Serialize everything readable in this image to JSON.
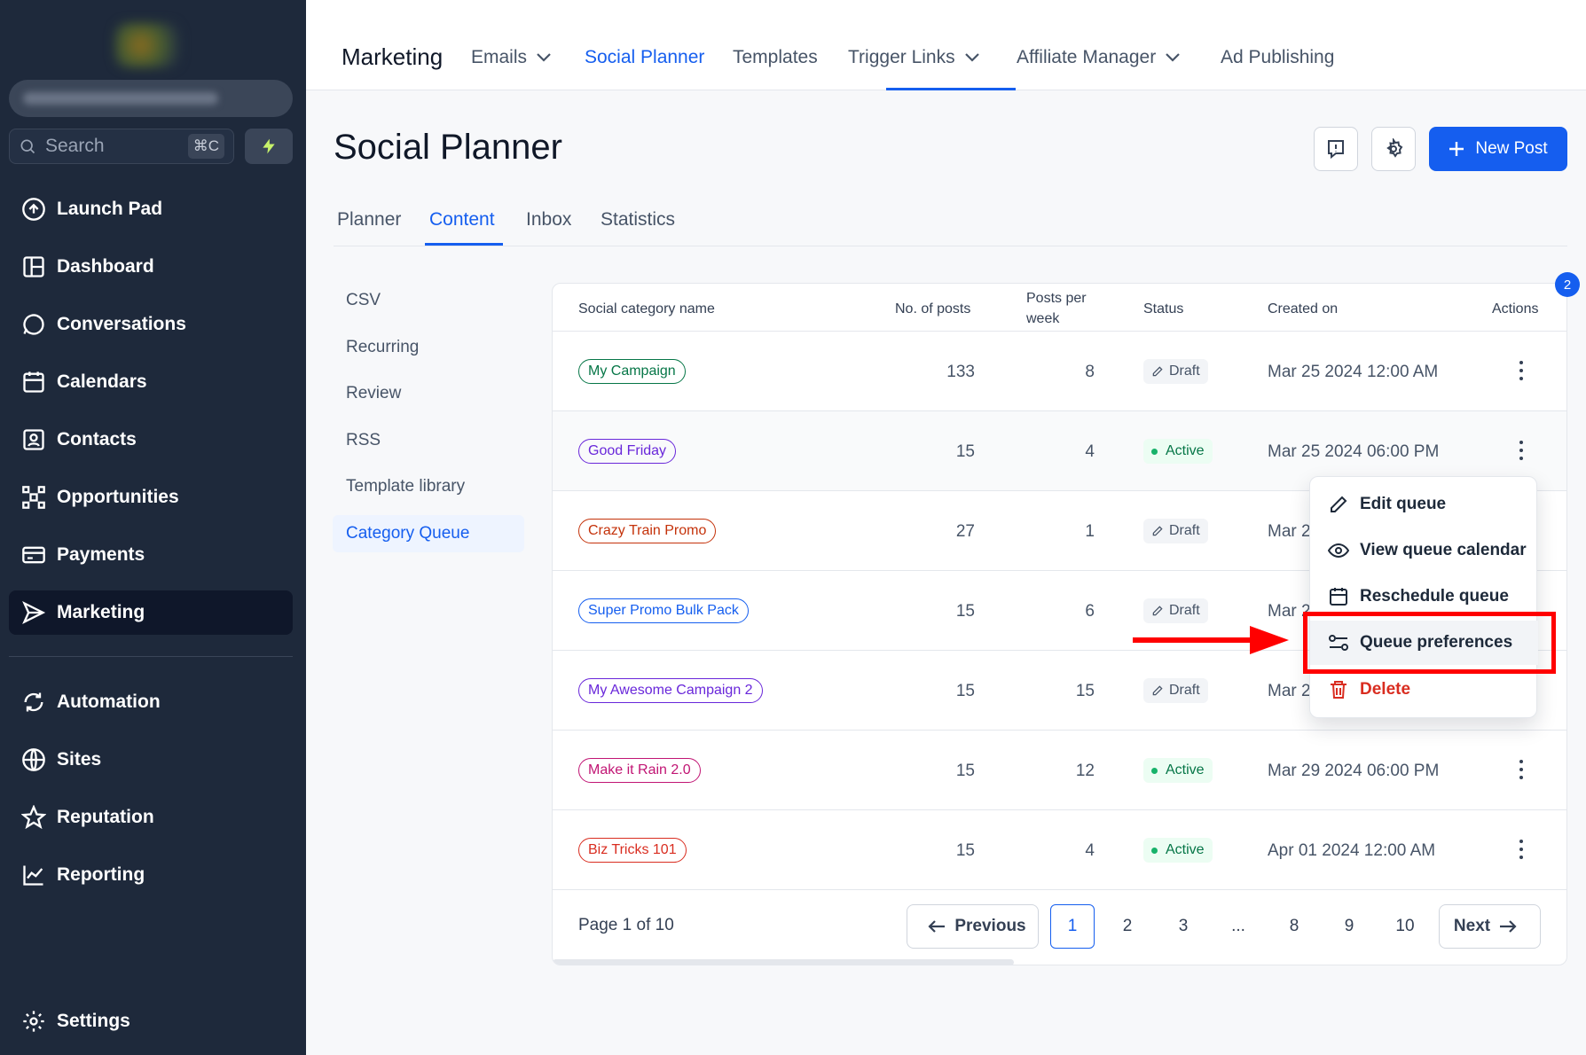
{
  "sidebar": {
    "search": {
      "placeholder": "Search",
      "shortcut": "⌘C"
    },
    "items": [
      {
        "label": "Launch Pad",
        "icon": "arrow-up-circle-icon"
      },
      {
        "label": "Dashboard",
        "icon": "layout-icon"
      },
      {
        "label": "Conversations",
        "icon": "chat-bubble-icon"
      },
      {
        "label": "Calendars",
        "icon": "calendar-icon"
      },
      {
        "label": "Contacts",
        "icon": "contact-card-icon"
      },
      {
        "label": "Opportunities",
        "icon": "network-icon"
      },
      {
        "label": "Payments",
        "icon": "credit-card-icon"
      },
      {
        "label": "Marketing",
        "icon": "send-icon"
      },
      {
        "label": "Automation",
        "icon": "cycle-icon"
      },
      {
        "label": "Sites",
        "icon": "globe-icon"
      },
      {
        "label": "Reputation",
        "icon": "star-icon"
      },
      {
        "label": "Reporting",
        "icon": "chart-line-icon"
      },
      {
        "label": "Settings",
        "icon": "gear-icon"
      }
    ],
    "active_item": "Marketing"
  },
  "topnav": {
    "title": "Marketing",
    "items": [
      "Emails",
      "Social Planner",
      "Templates",
      "Trigger Links",
      "Affiliate Manager",
      "Ad Publishing"
    ],
    "active": "Social Planner"
  },
  "header": {
    "title": "Social Planner",
    "new_post_label": "New Post"
  },
  "tabs": {
    "items": [
      "Planner",
      "Content",
      "Inbox",
      "Statistics"
    ],
    "active": "Content"
  },
  "content_menu": {
    "items": [
      "CSV",
      "Recurring",
      "Review",
      "RSS",
      "Template library",
      "Category Queue"
    ],
    "active": "Category Queue"
  },
  "table": {
    "columns": {
      "name": "Social category name",
      "posts": "No. of posts",
      "ppw_line1": "Posts per",
      "ppw_line2": "week",
      "status": "Status",
      "created": "Created on",
      "actions": "Actions"
    },
    "rows": [
      {
        "name": "My Campaign",
        "color": "#067647",
        "posts": "133",
        "per_week": "8",
        "status": "Draft",
        "created": "Mar 25 2024 12:00 AM"
      },
      {
        "name": "Good Friday",
        "color": "#6927da",
        "posts": "15",
        "per_week": "4",
        "status": "Active",
        "created": "Mar 25 2024 06:00 PM"
      },
      {
        "name": "Crazy Train Promo",
        "color": "#c4320a",
        "posts": "27",
        "per_week": "1",
        "status": "Draft",
        "created": "Mar 2"
      },
      {
        "name": "Super Promo Bulk Pack",
        "color": "#155eef",
        "posts": "15",
        "per_week": "6",
        "status": "Draft",
        "created": "Mar 2"
      },
      {
        "name": "My Awesome Campaign 2",
        "color": "#6927da",
        "posts": "15",
        "per_week": "15",
        "status": "Draft",
        "created": "Mar 2"
      },
      {
        "name": "Make it Rain 2.0",
        "color": "#c11574",
        "posts": "15",
        "per_week": "12",
        "status": "Active",
        "created": "Mar 29 2024 06:00 PM"
      },
      {
        "name": "Biz Tricks 101",
        "color": "#d92d20",
        "posts": "15",
        "per_week": "4",
        "status": "Active",
        "created": "Apr 01 2024 12:00 AM"
      }
    ],
    "badge_count": "2"
  },
  "pagination": {
    "label": "Page 1 of 10",
    "previous": "Previous",
    "next": "Next",
    "pages": [
      "1",
      "2",
      "3",
      "...",
      "8",
      "9",
      "10"
    ],
    "current": "1"
  },
  "dropdown": {
    "items": [
      {
        "label": "Edit queue",
        "icon": "pencil-icon"
      },
      {
        "label": "View queue calendar",
        "icon": "eye-icon"
      },
      {
        "label": "Reschedule queue",
        "icon": "calendar-icon"
      },
      {
        "label": "Queue preferences",
        "icon": "sliders-icon"
      },
      {
        "label": "Delete",
        "icon": "trash-icon"
      }
    ],
    "highlighted": "Queue preferences"
  },
  "colors": {
    "accent": "#155eef",
    "sidebar_bg": "#1e293b",
    "annotation": "#ff0000"
  }
}
